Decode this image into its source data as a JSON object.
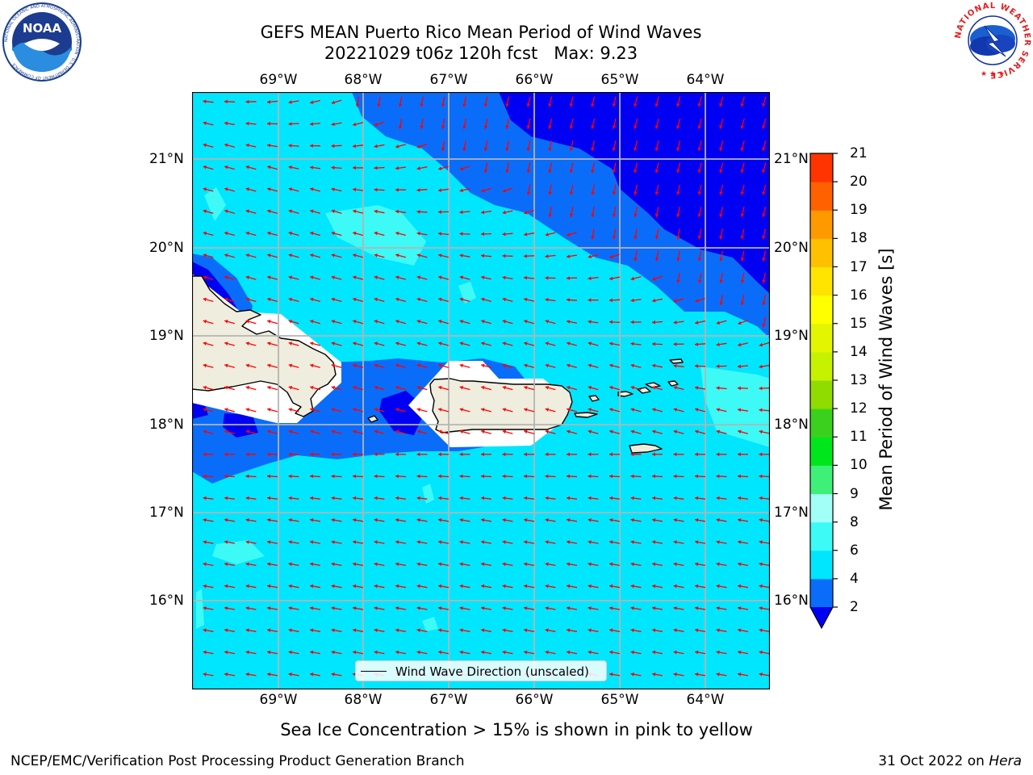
{
  "header": {
    "title_line1": "GEFS MEAN Puerto Rico Mean Period of Wind Waves",
    "title_line2": "20221029 t06z 120h fcst   Max: 9.23"
  },
  "logos": {
    "left": {
      "name": "noaa-logo",
      "text": "NOAA",
      "ring_text": "NATIONAL OCEANIC AND ATMOSPHERIC ADMINISTRATION · U.S. DEPARTMENT OF COMMERCE"
    },
    "right": {
      "name": "nws-logo",
      "ring_text": "NATIONAL WEATHER SERVICE"
    }
  },
  "map": {
    "lon_labels": [
      "69°W",
      "68°W",
      "67°W",
      "66°W",
      "65°W",
      "64°W"
    ],
    "lat_labels": [
      "21°N",
      "20°N",
      "19°N",
      "18°N",
      "17°N",
      "16°N"
    ],
    "legend_label": "Wind Wave Direction (unscaled)",
    "arrow_color": "#ff0000",
    "land_color": "#efeddd"
  },
  "colorbar": {
    "title": "Mean Period of Wind Waves [s]",
    "ticks": [
      "2",
      "4",
      "6",
      "8",
      "9",
      "10",
      "11",
      "12",
      "13",
      "14",
      "15",
      "16",
      "17",
      "18",
      "19",
      "20",
      "21"
    ],
    "colors": [
      "#0a6dfa",
      "#00e6ff",
      "#3dfaf7",
      "#a2fff7",
      "#3ef077",
      "#00e61c",
      "#3cd01e",
      "#90dc00",
      "#c6f200",
      "#e3f500",
      "#ffff00",
      "#ffe400",
      "#ffc000",
      "#ff9900",
      "#ff6000",
      "#ff3400",
      "#ff0000"
    ],
    "under_color": "#0000f2"
  },
  "footer": {
    "note": "Sea Ice Concentration > 15% is shown in pink to yellow",
    "credit": "NCEP/EMC/Verification Post Processing Product Generation Branch",
    "date": "31 Oct 2022 on",
    "machine": "Hera"
  }
}
